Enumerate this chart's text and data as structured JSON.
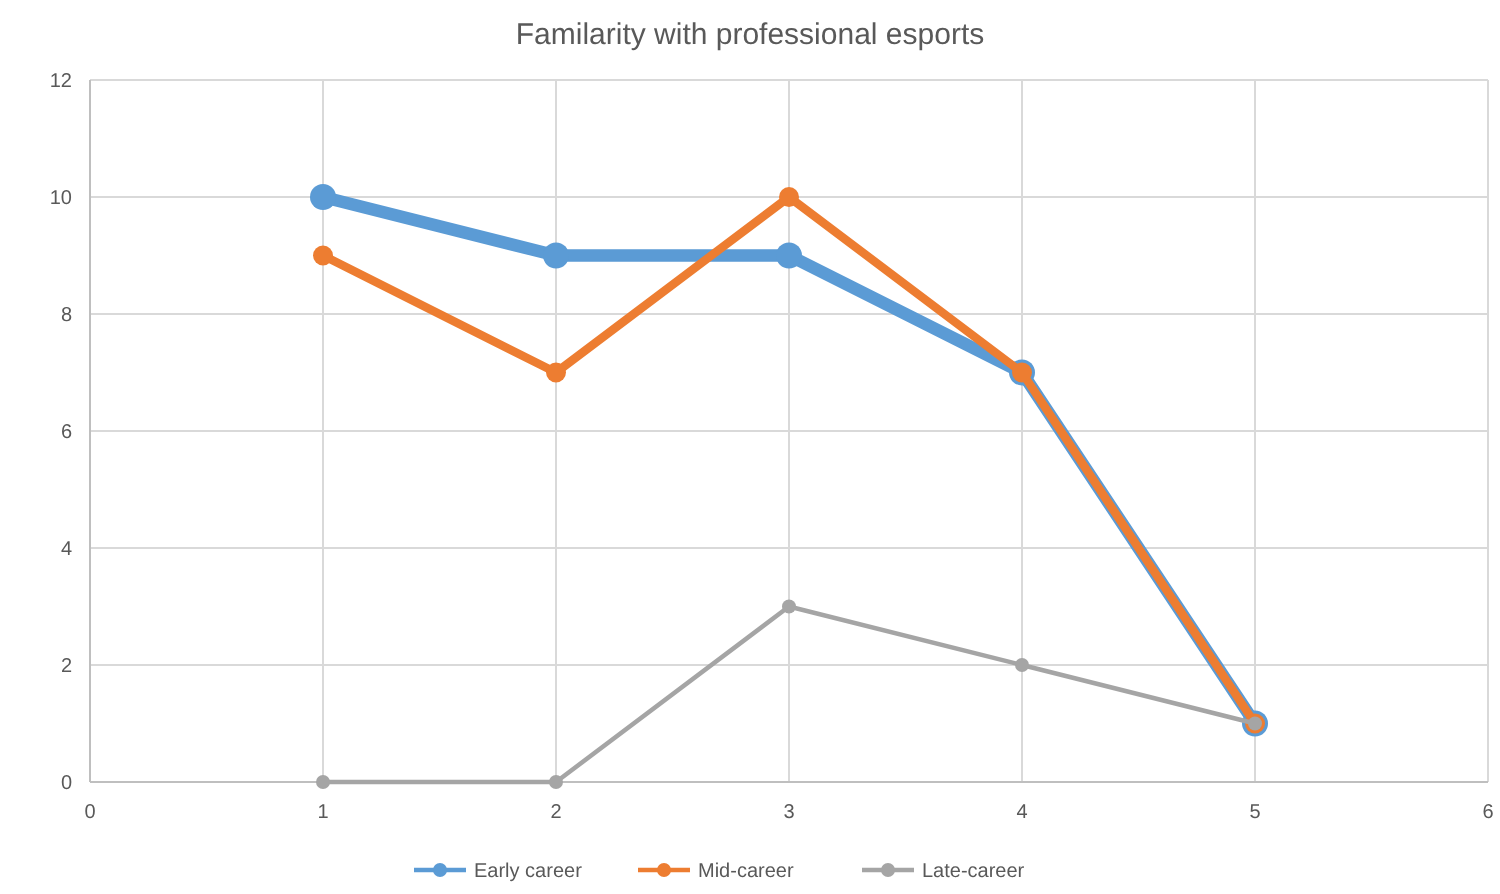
{
  "chart_data": {
    "type": "line",
    "title": "Familarity with professional esports",
    "x": [
      1,
      2,
      3,
      4,
      5
    ],
    "series": [
      {
        "name": "Early career",
        "color": "#5b9bd5",
        "values": [
          10,
          9,
          9,
          7,
          1
        ]
      },
      {
        "name": "Mid-career",
        "color": "#ed7d31",
        "values": [
          9,
          7,
          10,
          7,
          1
        ]
      },
      {
        "name": "Late-career",
        "color": "#a5a5a5",
        "values": [
          0,
          0,
          3,
          2,
          1
        ]
      }
    ],
    "xlim": [
      0,
      6
    ],
    "xticks": [
      0,
      1,
      2,
      3,
      4,
      5,
      6
    ],
    "ylim": [
      0,
      12
    ],
    "yticks": [
      0,
      2,
      4,
      6,
      8,
      10,
      12
    ],
    "grid": true,
    "legend": "bottom",
    "marker": "circle",
    "line_style": "solid"
  }
}
